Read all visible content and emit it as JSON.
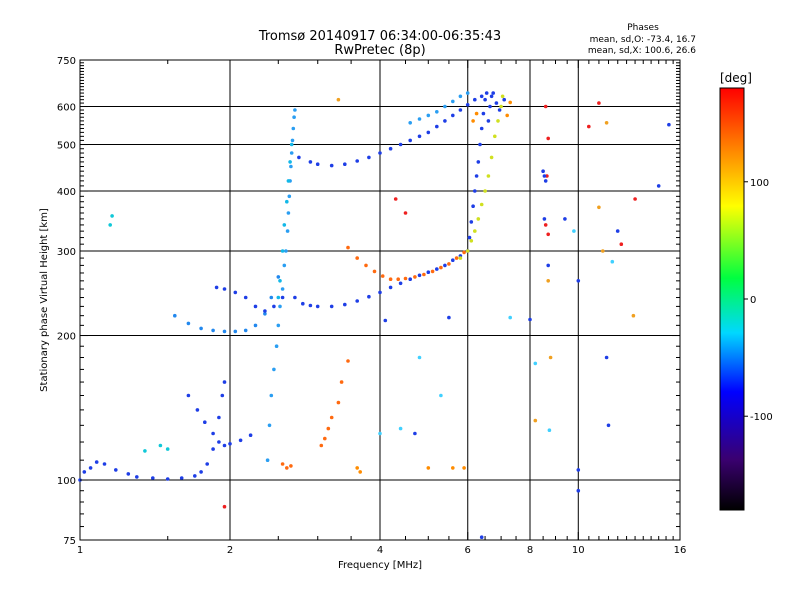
{
  "header": {
    "title": "Tromsø 20140917 06:34:00-06:35:43",
    "subtitle": "RwPretec (8p)",
    "phases_heading": "Phases",
    "phases_o": "mean, sd,O: -73.4, 16.7",
    "phases_x": "mean, sd,X: 100.6, 26.6"
  },
  "chart_data": {
    "type": "scatter",
    "title": "Tromsø 20140917 06:34:00-06:35:43",
    "subtitle": "RwPretec (8p)",
    "xlabel": "Frequency [MHz]",
    "ylabel": "Stationary phase Virtual Height [km]",
    "x_scale": "log",
    "y_scale": "log",
    "xlim": [
      1,
      16
    ],
    "ylim": [
      75,
      750
    ],
    "x_ticks": [
      1,
      2,
      4,
      6,
      8,
      10,
      16
    ],
    "x_tick_labels": [
      "1",
      "2",
      "4",
      "6",
      "8",
      "10",
      "16"
    ],
    "y_ticks": [
      75,
      100,
      200,
      300,
      400,
      500,
      600,
      750
    ],
    "y_tick_labels": [
      "75",
      "100",
      "200",
      "300",
      "400",
      "500",
      "600",
      "750"
    ],
    "grid": true,
    "colorbar": {
      "label": "[deg]",
      "range": [
        -180,
        180
      ],
      "ticks": [
        100,
        0,
        -100
      ],
      "tick_labels": [
        "100",
        "0",
        "-100"
      ],
      "colors": [
        "#000000",
        "#4b0082",
        "#0000ff",
        "#00ffff",
        "#00ff00",
        "#ffff00",
        "#ff8000",
        "#ff0000"
      ]
    },
    "series": [
      {
        "color": "#1e3ee6",
        "points": [
          [
            1.0,
            100
          ],
          [
            1.02,
            104
          ],
          [
            1.05,
            106
          ],
          [
            1.08,
            109
          ],
          [
            1.12,
            108
          ],
          [
            1.18,
            105
          ],
          [
            1.25,
            103
          ],
          [
            1.3,
            101.5
          ],
          [
            1.4,
            101
          ],
          [
            1.5,
            100.5
          ],
          [
            1.6,
            101
          ],
          [
            1.7,
            102
          ],
          [
            1.75,
            104
          ],
          [
            1.8,
            108
          ],
          [
            1.85,
            116
          ],
          [
            1.9,
            135
          ],
          [
            1.93,
            150
          ],
          [
            1.95,
            160
          ]
        ]
      },
      {
        "color": "#1e3ee6",
        "points": [
          [
            1.65,
            150
          ],
          [
            1.72,
            140
          ],
          [
            1.78,
            132
          ],
          [
            1.85,
            125
          ],
          [
            1.9,
            120
          ],
          [
            1.95,
            118
          ],
          [
            2.0,
            119
          ],
          [
            2.1,
            121
          ],
          [
            2.2,
            124
          ]
        ]
      },
      {
        "color": "#2288ee",
        "points": [
          [
            1.55,
            220
          ],
          [
            1.65,
            212
          ],
          [
            1.75,
            207
          ],
          [
            1.85,
            205
          ],
          [
            1.95,
            204
          ],
          [
            2.05,
            204
          ],
          [
            2.15,
            205
          ],
          [
            2.25,
            210
          ],
          [
            2.35,
            222
          ],
          [
            2.42,
            240
          ],
          [
            2.5,
            265
          ]
        ]
      },
      {
        "color": "#1e3ee6",
        "points": [
          [
            1.88,
            252
          ],
          [
            1.95,
            250
          ],
          [
            2.05,
            246
          ],
          [
            2.15,
            240
          ],
          [
            2.25,
            230
          ],
          [
            2.35,
            225
          ],
          [
            2.45,
            230
          ],
          [
            2.55,
            240
          ]
        ]
      },
      {
        "color": "#2a9ef2",
        "points": [
          [
            2.38,
            110
          ],
          [
            2.4,
            130
          ],
          [
            2.42,
            150
          ],
          [
            2.45,
            170
          ],
          [
            2.48,
            190
          ],
          [
            2.5,
            210
          ],
          [
            2.52,
            230
          ],
          [
            2.55,
            250
          ],
          [
            2.57,
            280
          ],
          [
            2.59,
            300
          ],
          [
            2.61,
            330
          ],
          [
            2.62,
            360
          ],
          [
            2.63,
            390
          ],
          [
            2.64,
            420
          ],
          [
            2.65,
            450
          ],
          [
            2.66,
            480
          ],
          [
            2.67,
            510
          ],
          [
            2.68,
            540
          ],
          [
            2.69,
            570
          ],
          [
            2.7,
            590
          ]
        ]
      },
      {
        "color": "#12b8e8",
        "points": [
          [
            2.5,
            240
          ],
          [
            2.52,
            260
          ],
          [
            2.55,
            300
          ],
          [
            2.57,
            340
          ],
          [
            2.6,
            380
          ],
          [
            2.62,
            420
          ],
          [
            2.64,
            460
          ],
          [
            2.66,
            500
          ]
        ]
      },
      {
        "color": "#1e3ee6",
        "points": [
          [
            2.7,
            240
          ],
          [
            2.8,
            233
          ],
          [
            2.9,
            231
          ],
          [
            3.0,
            230
          ],
          [
            3.2,
            230
          ],
          [
            3.4,
            232
          ],
          [
            3.6,
            236
          ],
          [
            3.8,
            241
          ],
          [
            4.0,
            246
          ],
          [
            4.2,
            252
          ],
          [
            4.4,
            257
          ],
          [
            4.6,
            262
          ],
          [
            4.8,
            267
          ],
          [
            5.0,
            271
          ],
          [
            5.2,
            275
          ],
          [
            5.4,
            280
          ],
          [
            5.6,
            287
          ],
          [
            5.8,
            293
          ],
          [
            6.0,
            300
          ]
        ]
      },
      {
        "color": "#1e3ee6",
        "points": [
          [
            6.0,
            300
          ],
          [
            6.05,
            320
          ],
          [
            6.1,
            345
          ],
          [
            6.15,
            372
          ],
          [
            6.2,
            400
          ],
          [
            6.25,
            430
          ],
          [
            6.3,
            460
          ],
          [
            6.35,
            500
          ],
          [
            6.4,
            540
          ],
          [
            6.45,
            580
          ],
          [
            6.5,
            620
          ],
          [
            6.55,
            640
          ]
        ]
      },
      {
        "color": "#1e3ee6",
        "points": [
          [
            2.75,
            470
          ],
          [
            2.9,
            460
          ],
          [
            3.0,
            455
          ],
          [
            3.2,
            452
          ],
          [
            3.4,
            455
          ],
          [
            3.6,
            462
          ],
          [
            3.8,
            470
          ],
          [
            4.0,
            480
          ],
          [
            4.2,
            490
          ],
          [
            4.4,
            500
          ],
          [
            4.6,
            510
          ],
          [
            4.8,
            520
          ],
          [
            5.0,
            530
          ],
          [
            5.2,
            545
          ],
          [
            5.4,
            560
          ],
          [
            5.6,
            575
          ],
          [
            5.8,
            590
          ],
          [
            6.0,
            605
          ],
          [
            6.2,
            620
          ],
          [
            6.4,
            630
          ]
        ]
      },
      {
        "color": "#ff6a10",
        "points": [
          [
            3.45,
            305
          ],
          [
            3.6,
            290
          ],
          [
            3.75,
            280
          ],
          [
            3.9,
            272
          ],
          [
            4.05,
            266
          ],
          [
            4.2,
            262
          ],
          [
            4.35,
            262
          ],
          [
            4.5,
            263
          ],
          [
            4.7,
            265
          ],
          [
            4.9,
            268
          ],
          [
            5.1,
            272
          ],
          [
            5.3,
            277
          ],
          [
            5.5,
            282
          ],
          [
            5.7,
            290
          ],
          [
            5.9,
            298
          ]
        ]
      },
      {
        "color": "#d0e020",
        "points": [
          [
            5.8,
            290
          ],
          [
            6.0,
            300
          ],
          [
            6.1,
            315
          ],
          [
            6.2,
            330
          ],
          [
            6.3,
            350
          ],
          [
            6.4,
            375
          ],
          [
            6.5,
            400
          ],
          [
            6.6,
            430
          ],
          [
            6.7,
            470
          ],
          [
            6.8,
            520
          ],
          [
            6.9,
            560
          ],
          [
            7.0,
            600
          ],
          [
            7.05,
            630
          ]
        ]
      },
      {
        "color": "#2a9ef2",
        "points": [
          [
            4.6,
            555
          ],
          [
            4.8,
            565
          ],
          [
            5.0,
            575
          ],
          [
            5.2,
            585
          ],
          [
            5.4,
            600
          ],
          [
            5.6,
            615
          ],
          [
            5.8,
            630
          ],
          [
            6.0,
            640
          ]
        ]
      },
      {
        "color": "#1e3ee6",
        "points": [
          [
            6.6,
            560
          ],
          [
            6.65,
            600
          ],
          [
            6.7,
            630
          ],
          [
            6.75,
            640
          ],
          [
            6.85,
            610
          ],
          [
            6.95,
            590
          ],
          [
            7.1,
            620
          ]
        ]
      },
      {
        "color": "#ff6a10",
        "points": [
          [
            2.55,
            108
          ],
          [
            2.6,
            106
          ],
          [
            2.65,
            107
          ],
          [
            3.05,
            118
          ],
          [
            3.1,
            122
          ],
          [
            3.15,
            128
          ],
          [
            3.2,
            135
          ],
          [
            3.3,
            145
          ],
          [
            3.35,
            160
          ],
          [
            3.45,
            177
          ]
        ]
      },
      {
        "color": "#ff8c00",
        "points": [
          [
            3.6,
            106
          ],
          [
            3.65,
            104
          ],
          [
            5.0,
            106
          ],
          [
            5.6,
            106
          ],
          [
            5.9,
            106
          ],
          [
            7.2,
            575
          ],
          [
            7.3,
            612
          ],
          [
            6.15,
            560
          ],
          [
            6.25,
            580
          ]
        ]
      },
      {
        "color": "#10c8d8",
        "points": [
          [
            1.15,
            340
          ],
          [
            1.16,
            355
          ],
          [
            1.35,
            115
          ],
          [
            1.45,
            118
          ],
          [
            1.5,
            116
          ]
        ]
      },
      {
        "color": "#ee2020",
        "points": [
          [
            8.6,
            600
          ],
          [
            8.7,
            515
          ],
          [
            8.65,
            430
          ],
          [
            8.6,
            340
          ],
          [
            8.7,
            325
          ],
          [
            4.3,
            385
          ],
          [
            4.5,
            360
          ],
          [
            10.5,
            545
          ],
          [
            13.0,
            385
          ],
          [
            1.95,
            88
          ],
          [
            11.0,
            610
          ],
          [
            12.2,
            310
          ]
        ]
      },
      {
        "color": "#1e3ee6",
        "points": [
          [
            8.5,
            440
          ],
          [
            8.6,
            420
          ],
          [
            8.55,
            350
          ],
          [
            8.7,
            280
          ],
          [
            8.55,
            430
          ],
          [
            9.4,
            350
          ],
          [
            10.0,
            260
          ],
          [
            10.0,
            95
          ],
          [
            10.0,
            105
          ],
          [
            11.4,
            180
          ],
          [
            11.5,
            130
          ],
          [
            14.5,
            410
          ],
          [
            15.2,
            550
          ],
          [
            12.0,
            330
          ],
          [
            8.0,
            216
          ],
          [
            5.5,
            218
          ],
          [
            4.7,
            125
          ],
          [
            6.4,
            76
          ],
          [
            4.1,
            215
          ]
        ]
      },
      {
        "color": "#f0a020",
        "points": [
          [
            3.3,
            620
          ],
          [
            8.8,
            180
          ],
          [
            8.2,
            133
          ],
          [
            11.0,
            370
          ],
          [
            11.4,
            555
          ],
          [
            11.2,
            300
          ],
          [
            12.9,
            220
          ],
          [
            8.7,
            260
          ]
        ]
      },
      {
        "color": "#40d0ff",
        "points": [
          [
            4.0,
            125
          ],
          [
            4.4,
            128
          ],
          [
            4.8,
            180
          ],
          [
            5.3,
            150
          ],
          [
            7.3,
            218
          ],
          [
            8.75,
            127
          ],
          [
            8.2,
            175
          ],
          [
            9.8,
            330
          ],
          [
            11.7,
            285
          ]
        ]
      }
    ]
  }
}
